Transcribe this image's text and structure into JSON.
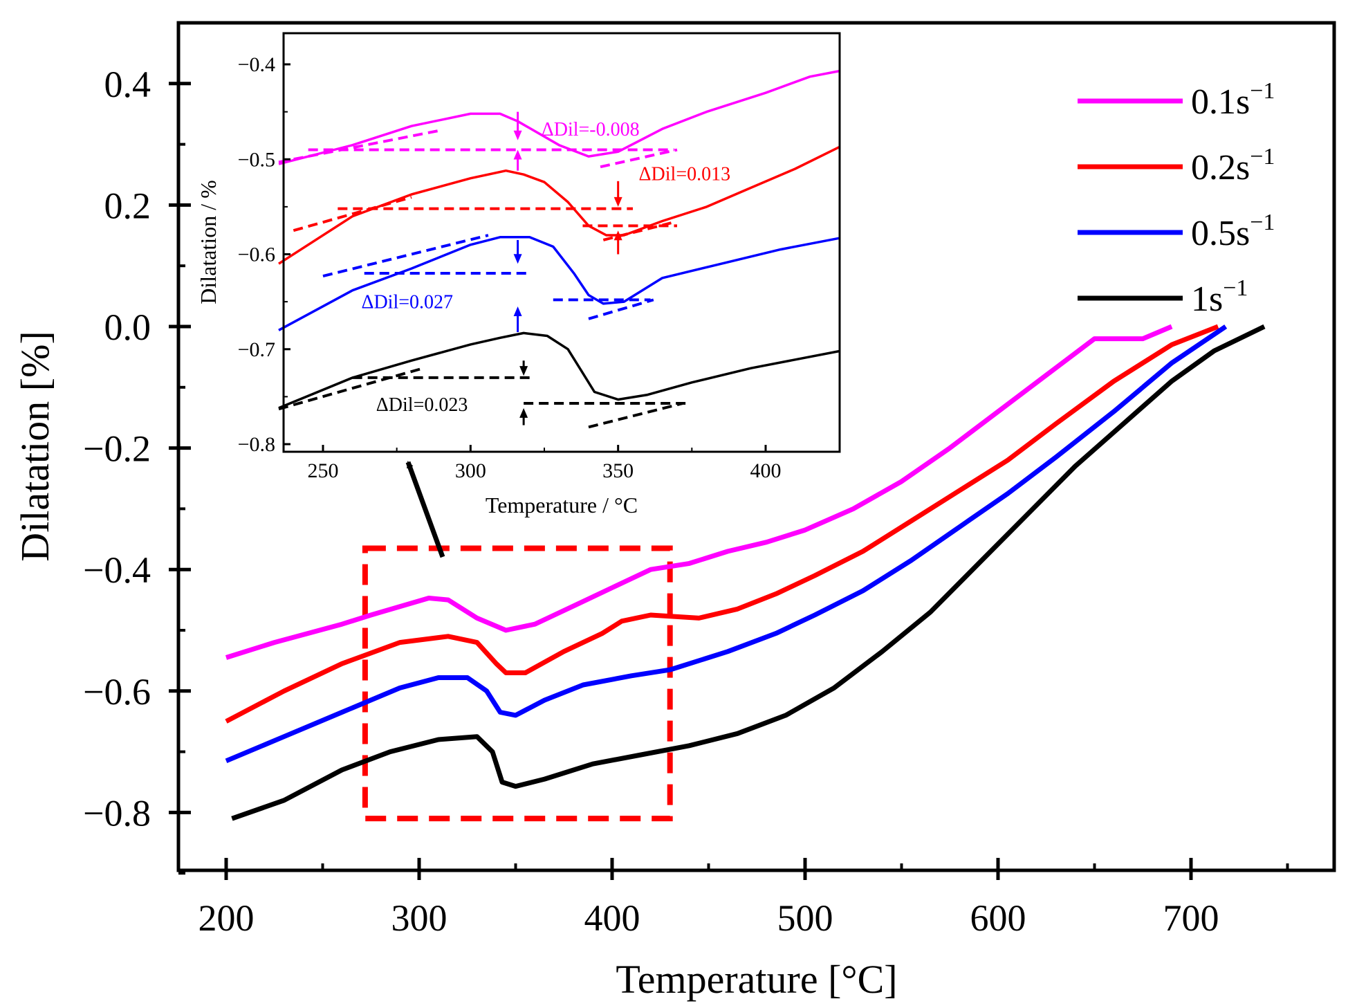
{
  "colors": {
    "magenta": "#ff00ff",
    "red": "#ff0000",
    "blue": "#0000ff",
    "black": "#000000",
    "highlight_box": "#ff0000"
  },
  "chart_data": [
    {
      "type": "line",
      "xlabel": "Temperature [°C]",
      "ylabel": "Dilatation  [%]",
      "xlim": [
        176,
        1176
      ],
      "ylim": [
        -0.9,
        0.5
      ],
      "xticks": [
        200,
        300,
        400,
        500,
        600,
        700
      ],
      "yticks": [
        0.4,
        0.2,
        0.0,
        -0.2,
        -0.4,
        -0.6,
        -0.8
      ],
      "xtick_labels": [
        "200",
        "300",
        "400",
        "500",
        "600",
        "700"
      ],
      "ytick_labels": [
        "0.4",
        "0.2",
        "0.0",
        "−0.2",
        "−0.4",
        "−0.6",
        "−0.8"
      ],
      "grid": false,
      "legend_position": "top-right",
      "series": [
        {
          "name": "0.1s⁻¹",
          "label_base": "0.1s",
          "label_sup": "−1",
          "color": "#ff00ff",
          "x": [
            200,
            225,
            260,
            275,
            305,
            315,
            330,
            345,
            360,
            380,
            400,
            420,
            440,
            460,
            480,
            500,
            525,
            550,
            575,
            600,
            625,
            650,
            675,
            690
          ],
          "y": [
            -0.545,
            -0.52,
            -0.49,
            -0.475,
            -0.447,
            -0.45,
            -0.48,
            -0.5,
            -0.49,
            -0.46,
            -0.43,
            -0.4,
            -0.39,
            -0.37,
            -0.355,
            -0.335,
            -0.3,
            -0.255,
            -0.2,
            -0.14,
            -0.08,
            -0.02,
            -0.02,
            0.0
          ]
        },
        {
          "name": "0.2s⁻¹",
          "label_base": "0.2s",
          "label_sup": "−1",
          "color": "#ff0000",
          "x": [
            200,
            230,
            260,
            290,
            315,
            330,
            340,
            345,
            355,
            375,
            395,
            405,
            420,
            445,
            465,
            485,
            505,
            530,
            555,
            580,
            605,
            630,
            660,
            690,
            714
          ],
          "y": [
            -0.65,
            -0.6,
            -0.555,
            -0.52,
            -0.51,
            -0.52,
            -0.555,
            -0.57,
            -0.57,
            -0.535,
            -0.505,
            -0.485,
            -0.475,
            -0.48,
            -0.465,
            -0.44,
            -0.41,
            -0.37,
            -0.32,
            -0.27,
            -0.22,
            -0.16,
            -0.09,
            -0.03,
            0.0
          ]
        },
        {
          "name": "0.5s⁻¹",
          "label_base": "0.5s",
          "label_sup": "−1",
          "color": "#0000ff",
          "x": [
            200,
            230,
            260,
            290,
            310,
            325,
            335,
            342,
            350,
            365,
            385,
            410,
            430,
            460,
            485,
            505,
            530,
            555,
            580,
            605,
            630,
            660,
            690,
            718
          ],
          "y": [
            -0.715,
            -0.675,
            -0.635,
            -0.595,
            -0.578,
            -0.578,
            -0.6,
            -0.635,
            -0.64,
            -0.615,
            -0.59,
            -0.575,
            -0.565,
            -0.535,
            -0.505,
            -0.475,
            -0.435,
            -0.385,
            -0.33,
            -0.275,
            -0.215,
            -0.14,
            -0.06,
            0.0
          ]
        },
        {
          "name": "1s⁻¹",
          "label_base": "1s",
          "label_sup": "−1",
          "color": "#000000",
          "x": [
            203,
            230,
            260,
            285,
            310,
            330,
            338,
            343,
            350,
            365,
            390,
            415,
            440,
            465,
            490,
            515,
            540,
            565,
            590,
            615,
            640,
            665,
            690,
            712,
            738
          ],
          "y": [
            -0.81,
            -0.78,
            -0.73,
            -0.7,
            -0.68,
            -0.675,
            -0.7,
            -0.75,
            -0.757,
            -0.745,
            -0.72,
            -0.705,
            -0.69,
            -0.67,
            -0.64,
            -0.595,
            -0.535,
            -0.47,
            -0.39,
            -0.31,
            -0.23,
            -0.16,
            -0.09,
            -0.04,
            0.0
          ]
        }
      ],
      "highlight_box": {
        "x": [
          272,
          430
        ],
        "y": [
          -0.81,
          -0.365
        ]
      }
    },
    {
      "type": "line",
      "inset": true,
      "xlabel": "Temperature / °C",
      "ylabel": "Dilatation / %",
      "xlim": [
        235,
        425
      ],
      "ylim": [
        -0.81,
        -0.385
      ],
      "xticks": [
        250,
        300,
        350,
        400
      ],
      "yticks": [
        -0.4,
        -0.5,
        -0.6,
        -0.7,
        -0.8
      ],
      "xtick_labels": [
        "250",
        "300",
        "350",
        "400"
      ],
      "ytick_labels": [
        "−0.4",
        "−0.5",
        "−0.6",
        "−0.7",
        "−0.8"
      ],
      "series": [
        {
          "color": "#ff00ff",
          "x": [
            235,
            260,
            280,
            300,
            310,
            316,
            330,
            340,
            350,
            365,
            380,
            400,
            415,
            425
          ],
          "y": [
            -0.505,
            -0.485,
            -0.465,
            -0.452,
            -0.452,
            -0.46,
            -0.485,
            -0.497,
            -0.492,
            -0.468,
            -0.45,
            -0.43,
            -0.413,
            -0.407
          ]
        },
        {
          "color": "#ff0000",
          "x": [
            235,
            260,
            280,
            300,
            312,
            318,
            325,
            333,
            340,
            346,
            352,
            365,
            380,
            395,
            410,
            425
          ],
          "y": [
            -0.61,
            -0.56,
            -0.537,
            -0.52,
            -0.512,
            -0.516,
            -0.524,
            -0.545,
            -0.57,
            -0.58,
            -0.58,
            -0.565,
            -0.55,
            -0.53,
            -0.51,
            -0.487
          ]
        },
        {
          "color": "#0000ff",
          "x": [
            235,
            260,
            280,
            300,
            310,
            320,
            328,
            335,
            340,
            345,
            352,
            365,
            385,
            405,
            425
          ],
          "y": [
            -0.68,
            -0.638,
            -0.615,
            -0.59,
            -0.582,
            -0.582,
            -0.592,
            -0.62,
            -0.643,
            -0.652,
            -0.65,
            -0.625,
            -0.61,
            -0.595,
            -0.583
          ]
        },
        {
          "color": "#000000",
          "x": [
            235,
            260,
            280,
            300,
            310,
            318,
            326,
            333,
            338,
            342,
            350,
            360,
            375,
            395,
            425
          ],
          "y": [
            -0.762,
            -0.73,
            -0.712,
            -0.695,
            -0.688,
            -0.683,
            -0.686,
            -0.7,
            -0.725,
            -0.745,
            -0.753,
            -0.748,
            -0.735,
            -0.72,
            -0.702
          ]
        }
      ],
      "guides": [
        {
          "color": "#ff00ff",
          "x": [
            235,
            289
          ],
          "y": [
            -0.503,
            -0.47
          ]
        },
        {
          "color": "#ff00ff",
          "x": [
            245,
            369
          ],
          "y": [
            -0.49,
            -0.49
          ]
        },
        {
          "color": "#ff00ff",
          "x": [
            344,
            370
          ],
          "y": [
            -0.508,
            -0.49
          ]
        },
        {
          "color": "#ff0000",
          "x": [
            240,
            280
          ],
          "y": [
            -0.575,
            -0.54
          ]
        },
        {
          "color": "#ff0000",
          "x": [
            255,
            355
          ],
          "y": [
            -0.552,
            -0.552
          ]
        },
        {
          "color": "#ff0000",
          "x": [
            338,
            370
          ],
          "y": [
            -0.57,
            -0.57
          ]
        },
        {
          "color": "#ff0000",
          "x": [
            345,
            368
          ],
          "y": [
            -0.585,
            -0.567
          ]
        },
        {
          "color": "#0000ff",
          "x": [
            250,
            306
          ],
          "y": [
            -0.623,
            -0.58
          ]
        },
        {
          "color": "#0000ff",
          "x": [
            264,
            320
          ],
          "y": [
            -0.62,
            -0.62
          ]
        },
        {
          "color": "#0000ff",
          "x": [
            328,
            361
          ],
          "y": [
            -0.648,
            -0.648
          ]
        },
        {
          "color": "#0000ff",
          "x": [
            340,
            362
          ],
          "y": [
            -0.668,
            -0.648
          ]
        },
        {
          "color": "#000000",
          "x": [
            235,
            284
          ],
          "y": [
            -0.763,
            -0.72
          ]
        },
        {
          "color": "#000000",
          "x": [
            260,
            321
          ],
          "y": [
            -0.73,
            -0.73
          ]
        },
        {
          "color": "#000000",
          "x": [
            318,
            374
          ],
          "y": [
            -0.757,
            -0.757
          ]
        },
        {
          "color": "#000000",
          "x": [
            340,
            372
          ],
          "y": [
            -0.782,
            -0.757
          ]
        }
      ],
      "brackets": [
        {
          "color": "#ff00ff",
          "x": 316,
          "y_from": -0.45,
          "y_to": -0.48,
          "y_up_from": -0.512,
          "y_up_to": -0.49
        },
        {
          "color": "#ff0000",
          "x": 350,
          "y_from": -0.523,
          "y_to": -0.55,
          "y_up_from": -0.6,
          "y_up_to": -0.575
        },
        {
          "color": "#0000ff",
          "x": 316,
          "y_from": -0.585,
          "y_to": -0.61,
          "y_up_from": -0.682,
          "y_up_to": -0.655
        },
        {
          "color": "#000000",
          "x": 318,
          "y_from": -0.712,
          "y_to": -0.728,
          "y_up_from": -0.78,
          "y_up_to": -0.762
        }
      ],
      "annotations": [
        {
          "text": "ΔDil=-0.008",
          "color": "#ff00ff",
          "x": 324,
          "y": -0.475
        },
        {
          "text": "ΔDil=0.013",
          "color": "#ff0000",
          "x": 357,
          "y": -0.522
        },
        {
          "text": "ΔDil=0.027",
          "color": "#0000ff",
          "x": 263,
          "y": -0.657
        },
        {
          "text": "ΔDil=0.023",
          "color": "#000000",
          "x": 268,
          "y": -0.765
        }
      ]
    }
  ]
}
